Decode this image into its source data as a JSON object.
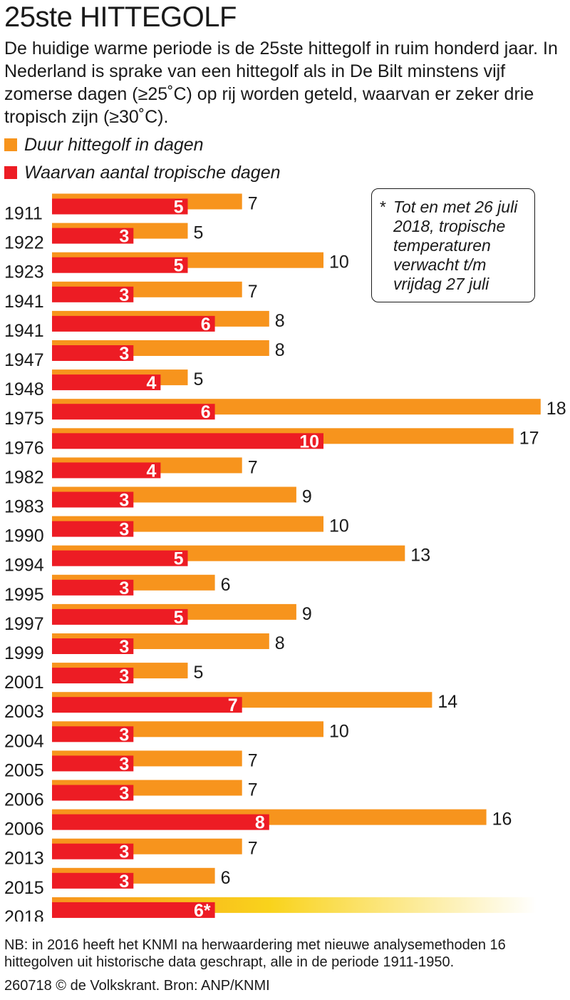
{
  "title": "25ste HITTEGOLF",
  "subtitle": "De huidige warme periode is de 25ste hittegolf in ruim honderd jaar. In Nederland is sprake van een hittegolf als in De Bilt minstens vijf zomerse dagen (≥25˚C) op rij worden geteld, waarvan er zeker drie tropisch zijn (≥30˚C).",
  "legend": {
    "duur": "Duur hittegolf in dagen",
    "tropisch": "Waarvan aantal tropische dagen"
  },
  "note": {
    "star": "*",
    "text": "Tot en met 26 juli 2018, tropische temperaturen verwacht t/m vrijdag 27 juli"
  },
  "colors": {
    "duur": "#F7941D",
    "tropisch": "#ED1C24",
    "gradient_start": "#F7941D",
    "gradient_mid": "#F9D31C",
    "gradient_end": "#FFFFFF"
  },
  "chart_data": {
    "type": "bar",
    "orientation": "horizontal",
    "title": "25ste HITTEGOLF",
    "xlabel": "",
    "ylabel": "",
    "xlim": [
      0,
      18
    ],
    "grid": false,
    "categories": [
      "1911",
      "1922",
      "1923",
      "1941",
      "1941",
      "1947",
      "1948",
      "1975",
      "1976",
      "1982",
      "1983",
      "1990",
      "1994",
      "1995",
      "1997",
      "1999",
      "2001",
      "2003",
      "2004",
      "2005",
      "2006",
      "2006",
      "2013",
      "2015",
      "2018"
    ],
    "series": [
      {
        "name": "Duur hittegolf in dagen",
        "values": [
          7,
          5,
          10,
          7,
          8,
          8,
          5,
          18,
          17,
          7,
          9,
          10,
          13,
          6,
          9,
          8,
          5,
          14,
          10,
          7,
          7,
          16,
          7,
          6,
          null
        ],
        "labels": [
          "7",
          "5",
          "10",
          "7",
          "8",
          "8",
          "5",
          "18",
          "17",
          "7",
          "9",
          "10",
          "13",
          "6",
          "9",
          "8",
          "5",
          "14",
          "10",
          "7",
          "7",
          "16",
          "7",
          "6",
          ""
        ]
      },
      {
        "name": "Waarvan aantal tropische dagen",
        "values": [
          5,
          3,
          5,
          3,
          6,
          3,
          4,
          6,
          10,
          4,
          3,
          3,
          5,
          3,
          5,
          3,
          3,
          7,
          3,
          3,
          3,
          8,
          3,
          3,
          6
        ],
        "labels": [
          "5",
          "3",
          "5",
          "3",
          "6",
          "3",
          "4",
          "6",
          "10",
          "4",
          "3",
          "3",
          "5",
          "3",
          "5",
          "3",
          "3",
          "7",
          "3",
          "3",
          "3",
          "8",
          "3",
          "3",
          "6*"
        ]
      }
    ],
    "ongoing_category": "2018",
    "annotations": [
      "* Tot en met 26 juli 2018, tropische temperaturen verwacht t/m vrijdag 27 juli"
    ]
  },
  "footnote": "NB: in 2016 heeft het KNMI na herwaardering met nieuwe analysemethoden 16 hittegolven uit historische data geschrapt, alle in de periode 1911-1950.",
  "credit": "260718 © de Volkskrant. Bron: ANP/KNMI"
}
